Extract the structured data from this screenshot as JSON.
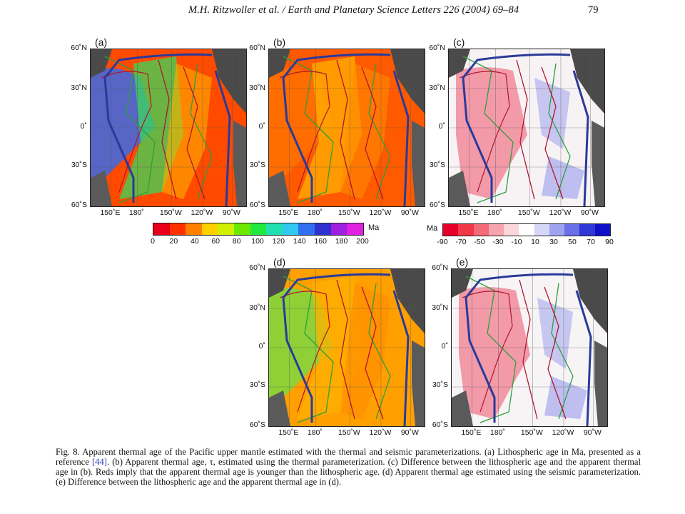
{
  "header": {
    "running_head": "M.H. Ritzwoller et al. / Earth and Planetary Science Letters 226 (2004) 69–84",
    "page_number": "79"
  },
  "axes": {
    "lat_labels": [
      "60˚N",
      "30˚N",
      "0˚",
      "30˚S",
      "60˚S"
    ],
    "lon_labels": [
      "150˚E",
      "180˚",
      "150˚W",
      "120˚W",
      "90˚W"
    ]
  },
  "panels": [
    {
      "label": "(a)",
      "type": "age",
      "fill": "#ff4a00"
    },
    {
      "label": "(b)",
      "type": "age",
      "fill": "#ff5a00"
    },
    {
      "label": "(c)",
      "type": "diff",
      "fill": "#f7f3f5"
    },
    {
      "label": "(d)",
      "type": "age",
      "fill": "#ffa000"
    },
    {
      "label": "(e)",
      "type": "diff",
      "fill": "#f7f4f6"
    }
  ],
  "colorbar_age": {
    "unit": "Ma",
    "ticks": [
      "0",
      "20",
      "40",
      "60",
      "80",
      "100",
      "120",
      "140",
      "160",
      "180",
      "200"
    ],
    "colors": [
      "#e8001a",
      "#ff3000",
      "#ff8000",
      "#ffd000",
      "#d0f000",
      "#6ae800",
      "#20e840",
      "#20e0b0",
      "#30c8f0",
      "#3070f0",
      "#3030d0",
      "#a020e0",
      "#e020e0"
    ]
  },
  "colorbar_diff": {
    "unit": "Ma",
    "ticks": [
      "-90",
      "-70",
      "-50",
      "-30",
      "-10",
      "10",
      "30",
      "50",
      "70",
      "90"
    ],
    "colors": [
      "#e8002a",
      "#f03848",
      "#f36a78",
      "#f8a4ae",
      "#fbd6da",
      "#ffffff",
      "#d6d6f8",
      "#a0a4f0",
      "#6a70e8",
      "#3038d8",
      "#1010c8"
    ]
  },
  "caption": {
    "part1": "Fig. 8. Apparent thermal age of the Pacific upper mantle estimated with the thermal and seismic parameterizations. (a) Lithospheric age in Ma, presented as a reference ",
    "ref": "[44]",
    "part2": ". (b) Apparent thermal age, τ, estimated using the thermal parameterization. (c) Difference between the lithospheric age and the apparent thermal age in (b). Reds imply that the apparent thermal age is younger than the lithospheric age. (d) Apparent thermal age estimated using the seismic parameterization. (e) Difference between the lithospheric age and the apparent thermal age in (d)."
  }
}
